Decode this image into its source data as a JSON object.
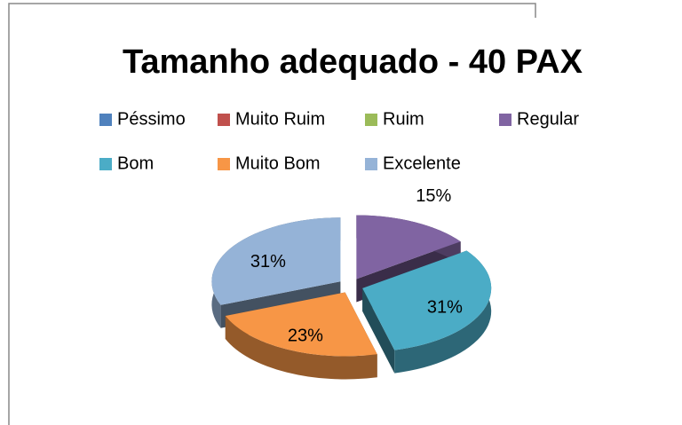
{
  "chart_data": {
    "type": "pie3d",
    "title": "Tamanho adequado - 40 PAX",
    "categories": [
      "Péssimo",
      "Muito Ruim",
      "Ruim",
      "Regular",
      "Bom",
      "Muito Bom",
      "Excelente"
    ],
    "values": [
      0,
      0,
      0,
      15,
      31,
      23,
      31
    ],
    "value_labels": [
      null,
      null,
      null,
      "15%",
      "31%",
      "23%",
      "31%"
    ],
    "colors": [
      "#4f81bd",
      "#c0504d",
      "#9bbb59",
      "#8064a2",
      "#4bacc6",
      "#f79646",
      "#95b3d7"
    ],
    "legend": "top"
  }
}
